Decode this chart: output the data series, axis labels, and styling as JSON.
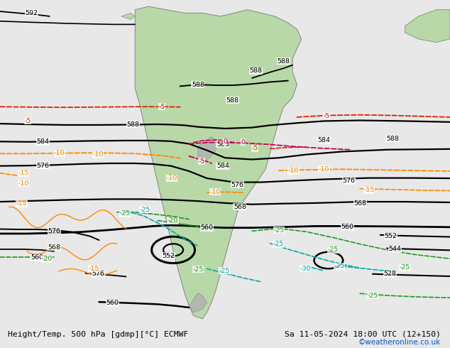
{
  "title_left": "Height/Temp. 500 hPa [gdmp][°C] ECMWF",
  "title_right": "Sa 11-05-2024 18:00 UTC (12+150)",
  "copyright": "©weatheronline.co.uk",
  "bg_color": "#e8e8e8",
  "ocean_color": "#dce8f0",
  "land_color": "#b8d8a8",
  "fig_width": 6.34,
  "fig_height": 4.9,
  "dpi": 100
}
